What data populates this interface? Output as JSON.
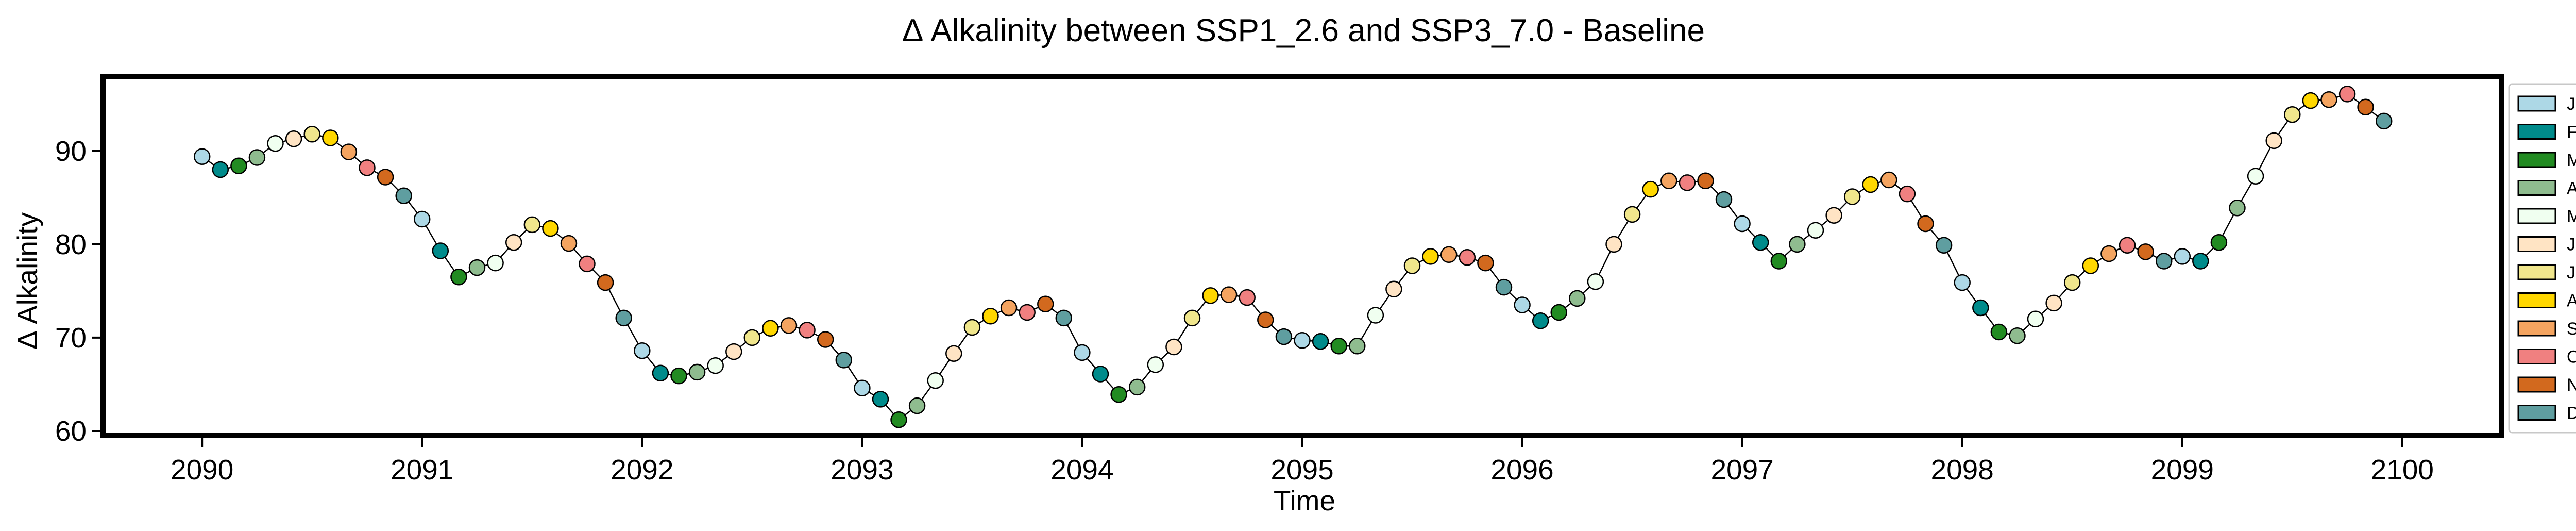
{
  "chart_data": {
    "type": "scatter",
    "title": "Δ Alkalinity between SSP1_2.6 and SSP3_7.0 - Baseline",
    "xlabel": "Time",
    "ylabel": "Δ Alkalinity",
    "xlim": [
      2089.55,
      2100.45
    ],
    "ylim": [
      59.5,
      98
    ],
    "x_ticks": [
      "2090",
      "2091",
      "2092",
      "2093",
      "2094",
      "2095",
      "2096",
      "2097",
      "2098",
      "2099",
      "2100"
    ],
    "y_ticks": [
      "60",
      "70",
      "80",
      "90"
    ],
    "grid": false,
    "legend_position": "outside-right",
    "connect_points": true,
    "legend": [
      {
        "month": 1,
        "label": "Jan",
        "color": "#ADD8E6"
      },
      {
        "month": 2,
        "label": "Feb",
        "color": "#008B8B"
      },
      {
        "month": 3,
        "label": "Mar",
        "color": "#228B22"
      },
      {
        "month": 4,
        "label": "Apr",
        "color": "#8FBC8F"
      },
      {
        "month": 5,
        "label": "May",
        "color": "#F0FFF0"
      },
      {
        "month": 6,
        "label": "June",
        "color": "#FFE4C4"
      },
      {
        "month": 7,
        "label": "July",
        "color": "#F0E68C"
      },
      {
        "month": 8,
        "label": "Aug",
        "color": "#FFD700"
      },
      {
        "month": 9,
        "label": "Sept",
        "color": "#F4A460"
      },
      {
        "month": 10,
        "label": "Oct",
        "color": "#F08080"
      },
      {
        "month": 11,
        "label": "Nov",
        "color": "#D2691E"
      },
      {
        "month": 12,
        "label": "Dec",
        "color": "#5F9EA0"
      }
    ],
    "series": [
      {
        "year": 2090,
        "values": [
          89.4,
          88.0,
          88.4,
          89.3,
          90.8,
          91.3,
          91.8,
          91.4,
          89.9,
          88.2,
          87.2,
          85.2
        ]
      },
      {
        "year": 2091,
        "values": [
          82.7,
          79.3,
          76.5,
          77.5,
          78.0,
          80.2,
          82.1,
          81.7,
          80.1,
          77.9,
          75.9,
          72.1
        ]
      },
      {
        "year": 2092,
        "values": [
          68.6,
          66.2,
          65.9,
          66.3,
          67.0,
          68.5,
          70.0,
          71.0,
          71.3,
          70.8,
          69.8,
          67.6
        ]
      },
      {
        "year": 2093,
        "values": [
          64.6,
          63.4,
          61.2,
          62.7,
          65.4,
          68.3,
          71.1,
          72.3,
          73.2,
          72.7,
          73.6,
          72.1
        ]
      },
      {
        "year": 2094,
        "values": [
          68.4,
          66.1,
          63.9,
          64.7,
          67.1,
          69.0,
          72.1,
          74.5,
          74.6,
          74.3,
          71.9,
          70.1
        ]
      },
      {
        "year": 2095,
        "values": [
          69.7,
          69.6,
          69.1,
          69.1,
          72.4,
          75.2,
          77.7,
          78.7,
          78.9,
          78.6,
          78.0,
          75.4
        ]
      },
      {
        "year": 2096,
        "values": [
          73.5,
          71.8,
          72.7,
          74.2,
          76.0,
          80.0,
          83.2,
          85.9,
          86.8,
          86.6,
          86.8,
          84.8
        ]
      },
      {
        "year": 2097,
        "values": [
          82.2,
          80.2,
          78.2,
          80.0,
          81.5,
          83.1,
          85.1,
          86.4,
          86.9,
          85.4,
          82.2,
          79.9
        ]
      },
      {
        "year": 2098,
        "values": [
          75.9,
          73.2,
          70.6,
          70.2,
          72.0,
          73.7,
          75.9,
          77.7,
          79.0,
          79.9,
          79.2,
          78.2
        ]
      },
      {
        "year": 2099,
        "values": [
          78.7,
          78.2,
          80.2,
          83.9,
          87.3,
          91.1,
          93.9,
          95.4,
          95.5,
          96.1,
          94.7,
          93.2
        ]
      }
    ]
  }
}
